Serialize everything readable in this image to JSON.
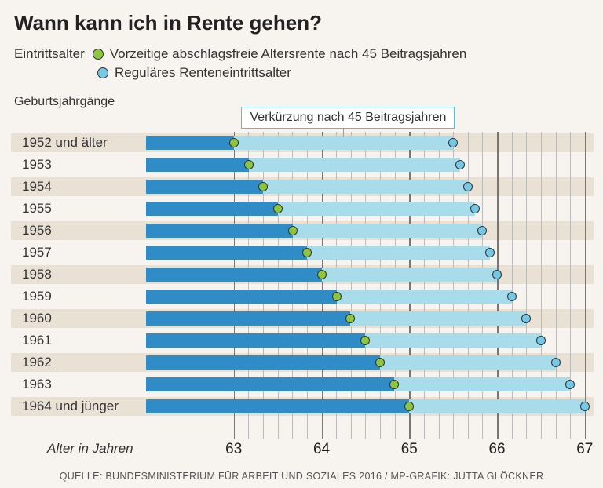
{
  "title": "Wann kann ich in Rente gehen?",
  "legend": {
    "label": "Eintrittsalter",
    "series1": {
      "color": "#8bc63e",
      "label": "Vorzeitige abschlagsfreie Altersrente nach 45 Beitragsjahren"
    },
    "series2": {
      "color": "#76c9e6",
      "label": "Reguläres Renteneintrittsalter"
    }
  },
  "sublabel": "Geburtsjahrgänge",
  "callout": "Verkürzung nach 45 Beitragsjahren",
  "axis": {
    "label": "Alter in Jahren",
    "start": 62.0,
    "majors": [
      63,
      64,
      65,
      66,
      67
    ],
    "minor_step": 0.1667,
    "grid_major_color": "#777",
    "grid_minor_color": "#bbb"
  },
  "rows": [
    {
      "label": "1952 und älter",
      "early": 63.0,
      "regular": 65.5
    },
    {
      "label": "1953",
      "early": 63.17,
      "regular": 65.58
    },
    {
      "label": "1954",
      "early": 63.33,
      "regular": 65.67
    },
    {
      "label": "1955",
      "early": 63.5,
      "regular": 65.75
    },
    {
      "label": "1956",
      "early": 63.67,
      "regular": 65.83
    },
    {
      "label": "1957",
      "early": 63.83,
      "regular": 65.92
    },
    {
      "label": "1958",
      "early": 64.0,
      "regular": 66.0
    },
    {
      "label": "1959",
      "early": 64.17,
      "regular": 66.17
    },
    {
      "label": "1960",
      "early": 64.33,
      "regular": 66.33
    },
    {
      "label": "1961",
      "early": 64.5,
      "regular": 66.5
    },
    {
      "label": "1962",
      "early": 64.67,
      "regular": 66.67
    },
    {
      "label": "1963",
      "early": 64.83,
      "regular": 66.83
    },
    {
      "label": "1964 und jünger",
      "early": 65.0,
      "regular": 67.0
    }
  ],
  "source": "QUELLE: BUNDESMINISTERIUM FÜR ARBEIT UND SOZIALES 2016 / MP-GRAFIK: JUTTA GLÖCKNER",
  "colors": {
    "bar_dark": "#2f8cc6",
    "bar_light": "#a8dceb",
    "background": "#f7f4ef",
    "alt_row": "#e8e1d4"
  }
}
